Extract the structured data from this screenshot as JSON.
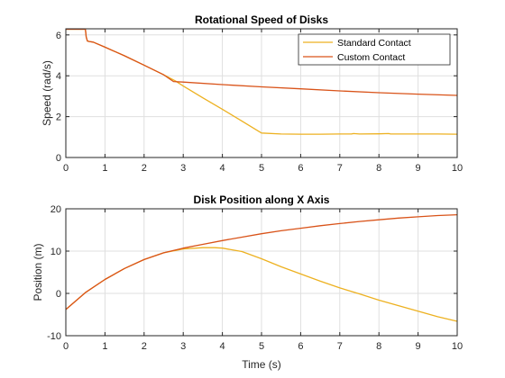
{
  "chart_data": [
    {
      "type": "line",
      "title": "Rotational Speed of Disks",
      "xlabel": "",
      "ylabel": "Speed (rad/s)",
      "xlim": [
        0,
        10
      ],
      "ylim": [
        0,
        6.3
      ],
      "xticks": [
        0,
        1,
        2,
        3,
        4,
        5,
        6,
        7,
        8,
        9,
        10
      ],
      "yticks": [
        0,
        2,
        4,
        6
      ],
      "grid": true,
      "legend": "top-right",
      "series": [
        {
          "name": "Standard Contact",
          "color": "#EDB120",
          "x": [
            0,
            0.45,
            0.5,
            0.52,
            0.55,
            0.6,
            0.7,
            1.0,
            1.5,
            2.0,
            2.5,
            2.8,
            3.0,
            3.5,
            4.0,
            4.5,
            5.0,
            5.5,
            6.0,
            6.5,
            7.0,
            7.3,
            7.35,
            7.5,
            8.0,
            8.25,
            8.3,
            8.5,
            9.0,
            9.5,
            10.0
          ],
          "y": [
            6.28,
            6.28,
            6.28,
            5.9,
            5.7,
            5.68,
            5.65,
            5.4,
            4.98,
            4.52,
            4.05,
            3.75,
            3.5,
            2.92,
            2.36,
            1.78,
            1.2,
            1.15,
            1.14,
            1.14,
            1.15,
            1.15,
            1.17,
            1.15,
            1.16,
            1.17,
            1.15,
            1.15,
            1.15,
            1.15,
            1.14
          ]
        },
        {
          "name": "Custom Contact",
          "color": "#D95319",
          "x": [
            0,
            0.45,
            0.5,
            0.52,
            0.55,
            0.6,
            0.7,
            1.0,
            1.5,
            2.0,
            2.5,
            2.75,
            3.0,
            4.0,
            5.0,
            6.0,
            7.0,
            8.0,
            9.0,
            10.0
          ],
          "y": [
            6.28,
            6.28,
            6.28,
            5.9,
            5.7,
            5.68,
            5.65,
            5.4,
            4.98,
            4.52,
            4.05,
            3.72,
            3.69,
            3.57,
            3.46,
            3.36,
            3.26,
            3.17,
            3.1,
            3.04
          ]
        }
      ]
    },
    {
      "type": "line",
      "title": "Disk Position along X Axis",
      "xlabel": "Time (s)",
      "ylabel": "Position (m)",
      "xlim": [
        0,
        10
      ],
      "ylim": [
        -10,
        20
      ],
      "xticks": [
        0,
        1,
        2,
        3,
        4,
        5,
        6,
        7,
        8,
        9,
        10
      ],
      "yticks": [
        -10,
        0,
        10,
        20
      ],
      "grid": true,
      "series": [
        {
          "name": "Standard Contact",
          "color": "#EDB120",
          "x": [
            0,
            0.5,
            1.0,
            1.5,
            2.0,
            2.5,
            3.0,
            3.5,
            3.8,
            4.0,
            4.5,
            5.0,
            5.5,
            6.0,
            6.5,
            7.0,
            7.5,
            8.0,
            8.5,
            9.0,
            9.5,
            10.0
          ],
          "y": [
            -3.8,
            0.2,
            3.3,
            5.9,
            8.0,
            9.6,
            10.5,
            10.8,
            10.8,
            10.7,
            9.9,
            8.2,
            6.3,
            4.6,
            2.9,
            1.3,
            -0.1,
            -1.6,
            -2.9,
            -4.2,
            -5.5,
            -6.6
          ]
        },
        {
          "name": "Custom Contact",
          "color": "#D95319",
          "x": [
            0,
            0.5,
            1.0,
            1.5,
            2.0,
            2.5,
            3.0,
            3.5,
            4.0,
            4.5,
            5.0,
            5.5,
            6.0,
            6.5,
            7.0,
            7.5,
            8.0,
            8.5,
            9.0,
            9.5,
            10.0
          ],
          "y": [
            -3.8,
            0.2,
            3.3,
            5.9,
            8.0,
            9.6,
            10.7,
            11.6,
            12.5,
            13.3,
            14.1,
            14.8,
            15.4,
            16.0,
            16.5,
            17.0,
            17.4,
            17.8,
            18.1,
            18.4,
            18.6
          ]
        }
      ]
    }
  ]
}
